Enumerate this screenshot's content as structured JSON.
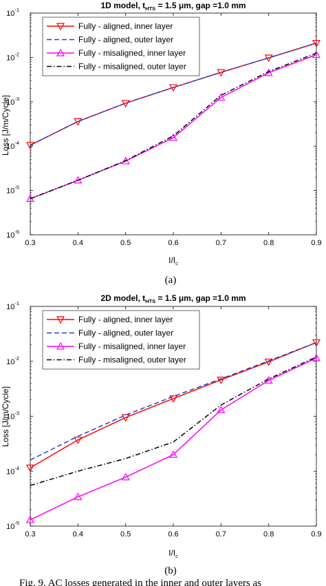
{
  "panels": [
    {
      "sublabel": "(a)",
      "title_prefix": "1D model, t",
      "title_sub": "HTS",
      "title_suffix": " = 1.5 μm, gap =1.0 mm",
      "ylabel": "Loss [J/m/Cycle]",
      "xlabel_main": "I/I",
      "xlabel_sub": "c"
    },
    {
      "sublabel": "(b)",
      "title_prefix": "2D model, t",
      "title_sub": "HTS",
      "title_suffix": " = 1.5 μm, gap =1.0 mm",
      "ylabel": "Loss [J/m/Cycle]",
      "xlabel_main": "I/I",
      "xlabel_sub": "c"
    }
  ],
  "caption": "Fig. 9. AC losses generated in the inner and outer layers as",
  "styles": {
    "aligned_inner": {
      "color": "#ff0000",
      "dash": "",
      "marker": "triangle-down"
    },
    "aligned_outer": {
      "color": "#1f3fd9",
      "dash": "7 4",
      "marker": "none"
    },
    "misaligned_inner": {
      "color": "#ff00ff",
      "dash": "",
      "marker": "triangle-up"
    },
    "misaligned_outer": {
      "color": "#000000",
      "dash": "7 3 1.5 3",
      "marker": "none"
    }
  },
  "chart_data": [
    {
      "type": "line",
      "title": "1D model, t_HTS = 1.5 μm, gap =1.0 mm",
      "xlabel": "I/I_c",
      "ylabel": "Loss [J/m/Cycle]",
      "yscale": "log",
      "xlim": [
        0.3,
        0.9
      ],
      "ylim": [
        1e-06,
        0.1
      ],
      "x": [
        0.3,
        0.4,
        0.5,
        0.6,
        0.7,
        0.8,
        0.9
      ],
      "x_ticks": [
        "0.3",
        "0.4",
        "0.5",
        "0.6",
        "0.7",
        "0.8",
        "0.9"
      ],
      "y_ticks": [
        -6,
        -5,
        -4,
        -3,
        -2,
        -1
      ],
      "legend_position": "top-left",
      "series": [
        {
          "name": "Fully - aligned, inner layer",
          "style": "aligned_inner",
          "values": [
            0.000105,
            0.00036,
            0.00093,
            0.0021,
            0.0046,
            0.0098,
            0.021
          ]
        },
        {
          "name": "Fully - aligned, outer layer",
          "style": "aligned_outer",
          "values": [
            0.000105,
            0.00036,
            0.00093,
            0.0021,
            0.0046,
            0.0098,
            0.021
          ]
        },
        {
          "name": "Fully - misaligned, inner layer",
          "style": "misaligned_inner",
          "values": [
            6.5e-06,
            1.7e-05,
            4.6e-05,
            0.000155,
            0.00125,
            0.0045,
            0.0115
          ]
        },
        {
          "name": "Fully - misaligned, outer layer",
          "style": "misaligned_outer",
          "values": [
            6.5e-06,
            1.7e-05,
            4.7e-05,
            0.00017,
            0.0014,
            0.0048,
            0.0125
          ]
        }
      ]
    },
    {
      "type": "line",
      "title": "2D model, t_HTS = 1.5 μm, gap =1.0 mm",
      "xlabel": "I/I_c",
      "ylabel": "Loss [J/m/Cycle]",
      "yscale": "log",
      "xlim": [
        0.3,
        0.9
      ],
      "ylim": [
        1e-05,
        0.1
      ],
      "x": [
        0.3,
        0.4,
        0.5,
        0.6,
        0.7,
        0.8,
        0.9
      ],
      "x_ticks": [
        "0.3",
        "0.4",
        "0.5",
        "0.6",
        "0.7",
        "0.8",
        "0.9"
      ],
      "y_ticks": [
        -5,
        -4,
        -3,
        -2,
        -1
      ],
      "legend_position": "top-left",
      "series": [
        {
          "name": "Fully - aligned, inner layer",
          "style": "aligned_inner",
          "values": [
            0.000115,
            0.00037,
            0.00095,
            0.0021,
            0.0046,
            0.0098,
            0.022
          ]
        },
        {
          "name": "Fully - aligned, outer layer",
          "style": "aligned_outer",
          "values": [
            0.00016,
            0.00043,
            0.00105,
            0.0023,
            0.0048,
            0.0102,
            0.022
          ]
        },
        {
          "name": "Fully - misaligned, inner layer",
          "style": "misaligned_inner",
          "values": [
            1.3e-05,
            3.4e-05,
            7.8e-05,
            0.0002,
            0.0013,
            0.0045,
            0.0115
          ]
        },
        {
          "name": "Fully - misaligned, outer layer",
          "style": "misaligned_outer",
          "values": [
            5.5e-05,
            0.0001,
            0.00017,
            0.00034,
            0.0016,
            0.0048,
            0.012
          ]
        }
      ]
    }
  ]
}
